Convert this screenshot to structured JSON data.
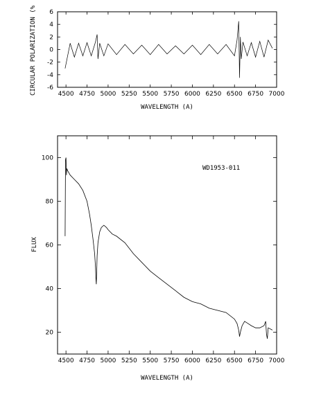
{
  "chart_data": [
    {
      "type": "line",
      "id": "polarization",
      "xlabel": "WAVELENGTH (A)",
      "ylabel": "CIRCULAR POLARIZATION (%",
      "xlim": [
        4400,
        7000
      ],
      "ylim": [
        -6,
        6
      ],
      "xticks": [
        4500,
        4750,
        5000,
        5250,
        5500,
        5750,
        6000,
        6250,
        6500,
        6750,
        7000
      ],
      "yticks": [
        -6,
        -4,
        -2,
        0,
        2,
        4,
        6
      ],
      "series": [
        {
          "x": [
            4490,
            4550,
            4600,
            4650,
            4700,
            4750,
            4800,
            4850,
            4870,
            4880,
            4900,
            4950,
            5000,
            5100,
            5200,
            5300,
            5400,
            5500,
            5600,
            5700,
            5800,
            5900,
            6000,
            6100,
            6200,
            6300,
            6400,
            6500,
            6530,
            6550,
            6560,
            6570,
            6580,
            6600,
            6650,
            6700,
            6750,
            6800,
            6850,
            6900,
            6950
          ],
          "y": [
            -3.0,
            1.0,
            -1.2,
            1.0,
            -1.0,
            1.1,
            -1.0,
            1.2,
            2.4,
            -1.5,
            1.0,
            -1.0,
            0.9,
            -0.8,
            0.8,
            -0.7,
            0.7,
            -0.8,
            0.8,
            -0.7,
            0.6,
            -0.7,
            0.7,
            -0.8,
            0.8,
            -0.7,
            0.8,
            -1.0,
            1.5,
            4.5,
            -4.5,
            2.0,
            -1.5,
            1.2,
            -1.0,
            1.1,
            -1.2,
            1.3,
            -1.2,
            1.5,
            0.2
          ]
        }
      ]
    },
    {
      "type": "line",
      "id": "flux",
      "title": "WD1953-011",
      "xlabel": "WAVELENGTH (A)",
      "ylabel": "FLUX",
      "xlim": [
        4400,
        7000
      ],
      "ylim": [
        10,
        110
      ],
      "xticks": [
        4500,
        4750,
        5000,
        5250,
        5500,
        5750,
        6000,
        6250,
        6500,
        6750,
        7000
      ],
      "yticks": [
        20,
        40,
        60,
        80,
        100
      ],
      "series": [
        {
          "x": [
            4490,
            4495,
            4500,
            4505,
            4510,
            4520,
            4550,
            4600,
            4650,
            4700,
            4750,
            4780,
            4800,
            4820,
            4840,
            4850,
            4855,
            4860,
            4865,
            4870,
            4880,
            4900,
            4920,
            4950,
            4980,
            5000,
            5050,
            5100,
            5200,
            5300,
            5400,
            5500,
            5600,
            5700,
            5800,
            5900,
            6000,
            6100,
            6200,
            6300,
            6400,
            6500,
            6530,
            6550,
            6560,
            6570,
            6590,
            6620,
            6660,
            6700,
            6750,
            6800,
            6850,
            6870,
            6880,
            6890,
            6900,
            6950
          ],
          "y": [
            64,
            99,
            100,
            92,
            95,
            94,
            92,
            90,
            88,
            85,
            80,
            74,
            69,
            63,
            56,
            50,
            45,
            42,
            48,
            55,
            61,
            66,
            68,
            69,
            68,
            67,
            65,
            64,
            61,
            56,
            52,
            48,
            45,
            42,
            39,
            36,
            34,
            33,
            31,
            30,
            29,
            26,
            24,
            21,
            18,
            20,
            23,
            25,
            24,
            23,
            22,
            22,
            23,
            25,
            19,
            17,
            22,
            21
          ]
        }
      ]
    }
  ]
}
